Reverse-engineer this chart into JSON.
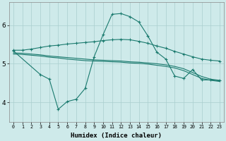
{
  "xlabel": "Humidex (Indice chaleur)",
  "x_ticks": [
    0,
    1,
    2,
    3,
    4,
    5,
    6,
    7,
    8,
    9,
    10,
    11,
    12,
    13,
    14,
    15,
    16,
    17,
    18,
    19,
    20,
    21,
    22,
    23
  ],
  "ylim": [
    3.5,
    6.6
  ],
  "yticks": [
    4,
    5,
    6
  ],
  "background_color": "#ceeaea",
  "line_color": "#1a7a6e",
  "grid_color": "#aacece",
  "series1_x": [
    0,
    1,
    2,
    3,
    4,
    5,
    6,
    7,
    8,
    9,
    10,
    11,
    12,
    13,
    14,
    15,
    16,
    17,
    18,
    19,
    20,
    21,
    22,
    23
  ],
  "series1_y": [
    5.35,
    5.35,
    5.38,
    5.42,
    5.46,
    5.48,
    5.51,
    5.53,
    5.55,
    5.57,
    5.6,
    5.62,
    5.63,
    5.62,
    5.58,
    5.53,
    5.46,
    5.4,
    5.32,
    5.25,
    5.18,
    5.12,
    5.09,
    5.07
  ],
  "series2_x": [
    0,
    1,
    2,
    3,
    4,
    5,
    6,
    7,
    8,
    9,
    10,
    11,
    12,
    13,
    14,
    15,
    16,
    17,
    18,
    19,
    20,
    21,
    22,
    23
  ],
  "series2_y": [
    5.28,
    5.27,
    5.25,
    5.23,
    5.2,
    5.18,
    5.16,
    5.14,
    5.12,
    5.1,
    5.09,
    5.08,
    5.07,
    5.05,
    5.04,
    5.02,
    5.0,
    4.97,
    4.93,
    4.87,
    4.77,
    4.67,
    4.6,
    4.57
  ],
  "series3_x": [
    0,
    1,
    2,
    3,
    4,
    5,
    6,
    7,
    8,
    9,
    10,
    11,
    12,
    13,
    14,
    15,
    16,
    17,
    18,
    19,
    20,
    21,
    22,
    23
  ],
  "series3_y": [
    5.25,
    5.24,
    5.22,
    5.2,
    5.17,
    5.15,
    5.12,
    5.1,
    5.08,
    5.07,
    5.06,
    5.05,
    5.04,
    5.02,
    5.01,
    4.99,
    4.96,
    4.93,
    4.89,
    4.82,
    4.72,
    4.62,
    4.57,
    4.54
  ],
  "series4_x": [
    0,
    3,
    4,
    5,
    6,
    7,
    8,
    9,
    10,
    11,
    12,
    13,
    14,
    15,
    16,
    17,
    18,
    19,
    20,
    21,
    22,
    23
  ],
  "series4_y": [
    5.33,
    4.72,
    4.6,
    3.82,
    4.02,
    4.08,
    4.36,
    5.18,
    5.75,
    6.28,
    6.3,
    6.22,
    6.08,
    5.72,
    5.3,
    5.12,
    4.68,
    4.62,
    4.85,
    4.58,
    4.58,
    4.56
  ]
}
